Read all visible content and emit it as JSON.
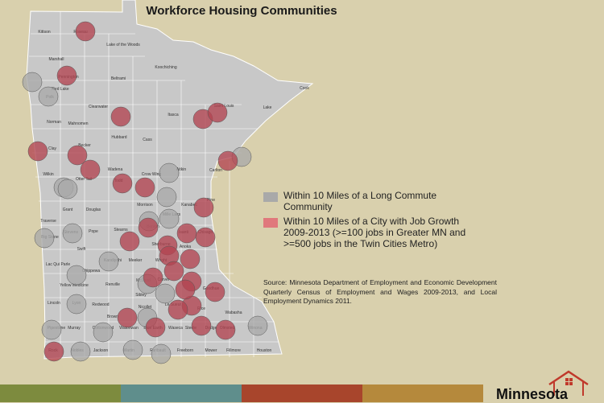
{
  "title": "Workforce Housing Communities",
  "legend": {
    "gray": {
      "label": "Within 10 Miles of a Long Commute Community",
      "color": "#a9a9a9"
    },
    "red": {
      "label": "Within 10 Miles of a City with Job Growth 2009-2013 (>=100 jobs in Greater MN and >=500 jobs in the Twin Cities Metro)",
      "color": "#e0787c"
    }
  },
  "source": "Source: Minnesota Department of Employment and Economic Development Quarterly Census of Employment and Wages 2009-2013, and Local Employment Dynamics 2011.",
  "logo_text": "Minnesota",
  "colors": {
    "background": "#d9d0ad",
    "state_fill": "#c8c8c8",
    "bar": [
      "#7d8b3e",
      "#5f8e8c",
      "#a8452c",
      "#b5893c"
    ]
  },
  "counties": [
    {
      "name": "Kittson"
    },
    {
      "name": "Lake of the Woods"
    },
    {
      "name": "Marshall"
    },
    {
      "name": "Pennington"
    },
    {
      "name": "Roseau"
    },
    {
      "name": "Beltrami"
    },
    {
      "name": "Koochiching"
    },
    {
      "name": "Cook"
    },
    {
      "name": "Red Lake"
    },
    {
      "name": "Polk"
    },
    {
      "name": "Clearwater"
    },
    {
      "name": "Saint Louis"
    },
    {
      "name": "Lake"
    },
    {
      "name": "Itasca"
    },
    {
      "name": "Norman"
    },
    {
      "name": "Mahnomen"
    },
    {
      "name": "Hubbard"
    },
    {
      "name": "Cass"
    },
    {
      "name": "Clay"
    },
    {
      "name": "Becker"
    },
    {
      "name": "Wadena"
    },
    {
      "name": "Crow Wing"
    },
    {
      "name": "Aitkin"
    },
    {
      "name": "Carlton"
    },
    {
      "name": "Wilkin"
    },
    {
      "name": "Otter Tail"
    },
    {
      "name": "Todd"
    },
    {
      "name": "Morrison"
    },
    {
      "name": "Mille Lacs"
    },
    {
      "name": "Kanabec"
    },
    {
      "name": "Pine"
    },
    {
      "name": "Grant"
    },
    {
      "name": "Douglas"
    },
    {
      "name": "Traverse"
    },
    {
      "name": "Stevens"
    },
    {
      "name": "Pope"
    },
    {
      "name": "Big Stone"
    },
    {
      "name": "Stearns"
    },
    {
      "name": "Benton"
    },
    {
      "name": "Sherburne"
    },
    {
      "name": "Isanti"
    },
    {
      "name": "Chisago"
    },
    {
      "name": "Swift"
    },
    {
      "name": "Kandiyohi"
    },
    {
      "name": "Meeker"
    },
    {
      "name": "Wright"
    },
    {
      "name": "Anoka"
    },
    {
      "name": "Lac Qui Parle"
    },
    {
      "name": "Chippewa"
    },
    {
      "name": "Yellow Medicine"
    },
    {
      "name": "Renville"
    },
    {
      "name": "McLeod"
    },
    {
      "name": "Carver"
    },
    {
      "name": "Lincoln"
    },
    {
      "name": "Lyon"
    },
    {
      "name": "Redwood"
    },
    {
      "name": "Sibley"
    },
    {
      "name": "Nicollet"
    },
    {
      "name": "Le Sueur"
    },
    {
      "name": "Rice"
    },
    {
      "name": "Goodhue"
    },
    {
      "name": "Wabasha"
    },
    {
      "name": "Pipestone"
    },
    {
      "name": "Murray"
    },
    {
      "name": "Cottonwood"
    },
    {
      "name": "Watonwan"
    },
    {
      "name": "Blue Earth"
    },
    {
      "name": "Waseca"
    },
    {
      "name": "Steele"
    },
    {
      "name": "Dodge"
    },
    {
      "name": "Olmsted"
    },
    {
      "name": "Winona"
    },
    {
      "name": "Rock"
    },
    {
      "name": "Nobles"
    },
    {
      "name": "Jackson"
    },
    {
      "name": "Martin"
    },
    {
      "name": "Faribault"
    },
    {
      "name": "Freeborn"
    },
    {
      "name": "Mower"
    },
    {
      "name": "Fillmore"
    },
    {
      "name": "Houston"
    },
    {
      "name": "Brown"
    }
  ]
}
